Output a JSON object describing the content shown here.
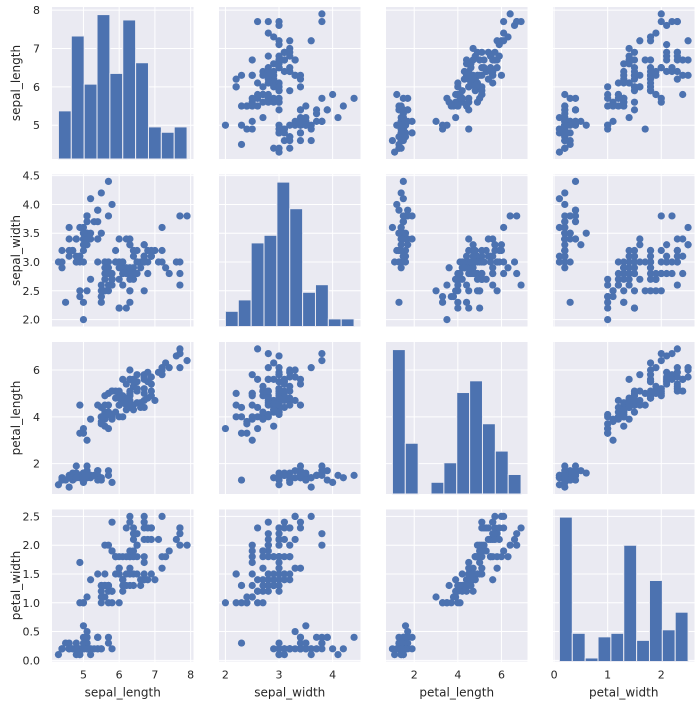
{
  "chart_data": {
    "type": "scatter",
    "variables": [
      "sepal_length",
      "sepal_width",
      "petal_length",
      "petal_width"
    ],
    "axis_labels": [
      "sepal_length",
      "sepal_width",
      "petal_length",
      "petal_width"
    ],
    "ranges": {
      "sepal_length": [
        4.12,
        8.08
      ],
      "sepal_width": [
        1.88,
        4.52
      ],
      "petal_length": [
        0.705,
        7.195
      ],
      "petal_width": [
        -0.02,
        2.62
      ]
    },
    "ticks": {
      "sepal_length": [
        5,
        6,
        7,
        8
      ],
      "sepal_width": [
        2.0,
        2.5,
        3.0,
        3.5,
        4.0,
        4.5
      ],
      "petal_length": [
        2,
        4,
        6
      ],
      "petal_width": [
        0.0,
        0.5,
        1.0,
        1.5,
        2.0,
        2.5
      ]
    },
    "tick_labels": {
      "y_sepal_length": [
        "5",
        "6",
        "7",
        "8"
      ],
      "x_sepal_length": [
        "5",
        "6",
        "7",
        "8"
      ],
      "y_sepal_width": [
        "2.0",
        "2.5",
        "3.0",
        "3.5",
        "4.0",
        "4.5"
      ],
      "x_sepal_width": [
        "2",
        "3",
        "4"
      ],
      "y_petal_length": [
        "2",
        "4",
        "6"
      ],
      "x_petal_length": [
        "2",
        "4",
        "6"
      ],
      "y_petal_width": [
        "0.0",
        "0.5",
        "1.0",
        "1.5",
        "2.0",
        "2.5"
      ],
      "x_petal_width": [
        "0",
        "1",
        "2"
      ]
    },
    "x_ticks": {
      "sepal_length": [
        5,
        6,
        7,
        8
      ],
      "sepal_width": [
        2,
        3,
        4
      ],
      "petal_length": [
        2,
        4,
        6
      ],
      "petal_width": [
        0,
        1,
        2
      ]
    },
    "histograms": {
      "sepal_length": {
        "edges": [
          4.3,
          4.66,
          5.02,
          5.38,
          5.74,
          6.1,
          6.46,
          6.82,
          7.18,
          7.54,
          7.9
        ],
        "counts": [
          9,
          23,
          14,
          27,
          16,
          26,
          18,
          6,
          5,
          6
        ]
      },
      "sepal_width": {
        "edges": [
          2.0,
          2.24,
          2.48,
          2.72,
          2.96,
          3.2,
          3.44,
          3.68,
          3.92,
          4.16,
          4.4
        ],
        "counts": [
          4,
          7,
          22,
          24,
          38,
          31,
          9,
          11,
          2,
          2
        ]
      },
      "petal_length": {
        "edges": [
          1.0,
          1.59,
          2.18,
          2.77,
          3.36,
          3.95,
          4.54,
          5.13,
          5.72,
          6.31,
          6.9
        ],
        "counts": [
          37,
          13,
          0,
          3,
          8,
          26,
          29,
          18,
          11,
          5
        ]
      },
      "petal_width": {
        "edges": [
          0.1,
          0.34,
          0.58,
          0.82,
          1.06,
          1.3,
          1.54,
          1.78,
          2.02,
          2.26,
          2.5
        ],
        "counts": [
          41,
          8,
          1,
          7,
          8,
          33,
          6,
          23,
          9,
          14
        ]
      }
    },
    "points": [
      [
        5.1,
        3.5,
        1.4,
        0.2
      ],
      [
        4.9,
        3.0,
        1.4,
        0.2
      ],
      [
        4.7,
        3.2,
        1.3,
        0.2
      ],
      [
        4.6,
        3.1,
        1.5,
        0.2
      ],
      [
        5.0,
        3.6,
        1.4,
        0.2
      ],
      [
        5.4,
        3.9,
        1.7,
        0.4
      ],
      [
        4.6,
        3.4,
        1.4,
        0.3
      ],
      [
        5.0,
        3.4,
        1.5,
        0.2
      ],
      [
        4.4,
        2.9,
        1.4,
        0.2
      ],
      [
        4.9,
        3.1,
        1.5,
        0.1
      ],
      [
        5.4,
        3.7,
        1.5,
        0.2
      ],
      [
        4.8,
        3.4,
        1.6,
        0.2
      ],
      [
        4.8,
        3.0,
        1.4,
        0.1
      ],
      [
        4.3,
        3.0,
        1.1,
        0.1
      ],
      [
        5.8,
        4.0,
        1.2,
        0.2
      ],
      [
        5.7,
        4.4,
        1.5,
        0.4
      ],
      [
        5.4,
        3.9,
        1.3,
        0.4
      ],
      [
        5.1,
        3.5,
        1.4,
        0.3
      ],
      [
        5.7,
        3.8,
        1.7,
        0.3
      ],
      [
        5.1,
        3.8,
        1.5,
        0.3
      ],
      [
        5.4,
        3.4,
        1.7,
        0.2
      ],
      [
        5.1,
        3.7,
        1.5,
        0.4
      ],
      [
        4.6,
        3.6,
        1.0,
        0.2
      ],
      [
        5.1,
        3.3,
        1.7,
        0.5
      ],
      [
        4.8,
        3.4,
        1.9,
        0.2
      ],
      [
        5.0,
        3.0,
        1.6,
        0.2
      ],
      [
        5.0,
        3.4,
        1.6,
        0.4
      ],
      [
        5.2,
        3.5,
        1.5,
        0.2
      ],
      [
        5.2,
        3.4,
        1.4,
        0.2
      ],
      [
        4.7,
        3.2,
        1.6,
        0.2
      ],
      [
        4.8,
        3.1,
        1.6,
        0.2
      ],
      [
        5.4,
        3.4,
        1.5,
        0.4
      ],
      [
        5.2,
        4.1,
        1.5,
        0.1
      ],
      [
        5.5,
        4.2,
        1.4,
        0.2
      ],
      [
        4.9,
        3.1,
        1.5,
        0.2
      ],
      [
        5.0,
        3.2,
        1.2,
        0.2
      ],
      [
        5.5,
        3.5,
        1.3,
        0.2
      ],
      [
        4.9,
        3.6,
        1.4,
        0.1
      ],
      [
        4.4,
        3.0,
        1.3,
        0.2
      ],
      [
        5.1,
        3.4,
        1.5,
        0.2
      ],
      [
        5.0,
        3.5,
        1.3,
        0.3
      ],
      [
        4.5,
        2.3,
        1.3,
        0.3
      ],
      [
        4.4,
        3.2,
        1.3,
        0.2
      ],
      [
        5.0,
        3.5,
        1.6,
        0.6
      ],
      [
        5.1,
        3.8,
        1.9,
        0.4
      ],
      [
        4.8,
        3.0,
        1.4,
        0.3
      ],
      [
        5.1,
        3.8,
        1.6,
        0.2
      ],
      [
        4.6,
        3.2,
        1.4,
        0.2
      ],
      [
        5.3,
        3.7,
        1.5,
        0.2
      ],
      [
        5.0,
        3.3,
        1.4,
        0.2
      ],
      [
        7.0,
        3.2,
        4.7,
        1.4
      ],
      [
        6.4,
        3.2,
        4.5,
        1.5
      ],
      [
        6.9,
        3.1,
        4.9,
        1.5
      ],
      [
        5.5,
        2.3,
        4.0,
        1.3
      ],
      [
        6.5,
        2.8,
        4.6,
        1.5
      ],
      [
        5.7,
        2.8,
        4.5,
        1.3
      ],
      [
        6.3,
        3.3,
        4.7,
        1.6
      ],
      [
        4.9,
        2.4,
        3.3,
        1.0
      ],
      [
        6.6,
        2.9,
        4.6,
        1.3
      ],
      [
        5.2,
        2.7,
        3.9,
        1.4
      ],
      [
        5.0,
        2.0,
        3.5,
        1.0
      ],
      [
        5.9,
        3.0,
        4.2,
        1.5
      ],
      [
        6.0,
        2.2,
        4.0,
        1.0
      ],
      [
        6.1,
        2.9,
        4.7,
        1.4
      ],
      [
        5.6,
        2.9,
        3.6,
        1.3
      ],
      [
        6.7,
        3.1,
        4.4,
        1.4
      ],
      [
        5.6,
        3.0,
        4.5,
        1.5
      ],
      [
        5.8,
        2.7,
        4.1,
        1.0
      ],
      [
        6.2,
        2.2,
        4.5,
        1.5
      ],
      [
        5.6,
        2.5,
        3.9,
        1.1
      ],
      [
        5.9,
        3.2,
        4.8,
        1.8
      ],
      [
        6.1,
        2.8,
        4.0,
        1.3
      ],
      [
        6.3,
        2.5,
        4.9,
        1.5
      ],
      [
        6.1,
        2.8,
        4.7,
        1.2
      ],
      [
        6.4,
        2.9,
        4.3,
        1.3
      ],
      [
        6.6,
        3.0,
        4.4,
        1.4
      ],
      [
        6.8,
        2.8,
        4.8,
        1.4
      ],
      [
        6.7,
        3.0,
        5.0,
        1.7
      ],
      [
        6.0,
        2.9,
        4.5,
        1.5
      ],
      [
        5.7,
        2.6,
        3.5,
        1.0
      ],
      [
        5.5,
        2.4,
        3.8,
        1.1
      ],
      [
        5.5,
        2.4,
        3.7,
        1.0
      ],
      [
        5.8,
        2.7,
        3.9,
        1.2
      ],
      [
        6.0,
        2.7,
        5.1,
        1.6
      ],
      [
        5.4,
        3.0,
        4.5,
        1.5
      ],
      [
        6.0,
        3.4,
        4.5,
        1.6
      ],
      [
        6.7,
        3.1,
        4.7,
        1.5
      ],
      [
        6.3,
        2.3,
        4.4,
        1.3
      ],
      [
        5.6,
        3.0,
        4.1,
        1.3
      ],
      [
        5.5,
        2.5,
        4.0,
        1.3
      ],
      [
        5.5,
        2.6,
        4.4,
        1.2
      ],
      [
        6.1,
        3.0,
        4.6,
        1.4
      ],
      [
        5.8,
        2.6,
        4.0,
        1.2
      ],
      [
        5.0,
        2.3,
        3.3,
        1.0
      ],
      [
        5.6,
        2.7,
        4.2,
        1.3
      ],
      [
        5.7,
        3.0,
        4.2,
        1.2
      ],
      [
        5.7,
        2.9,
        4.2,
        1.3
      ],
      [
        6.2,
        2.9,
        4.3,
        1.3
      ],
      [
        5.1,
        2.5,
        3.0,
        1.1
      ],
      [
        5.7,
        2.8,
        4.1,
        1.3
      ],
      [
        6.3,
        3.3,
        6.0,
        2.5
      ],
      [
        5.8,
        2.7,
        5.1,
        1.9
      ],
      [
        7.1,
        3.0,
        5.9,
        2.1
      ],
      [
        6.3,
        2.9,
        5.6,
        1.8
      ],
      [
        6.5,
        3.0,
        5.8,
        2.2
      ],
      [
        7.6,
        3.0,
        6.6,
        2.1
      ],
      [
        4.9,
        2.5,
        4.5,
        1.7
      ],
      [
        7.3,
        2.9,
        6.3,
        1.8
      ],
      [
        6.7,
        2.5,
        5.8,
        1.8
      ],
      [
        7.2,
        3.6,
        6.1,
        2.5
      ],
      [
        6.5,
        3.2,
        5.1,
        2.0
      ],
      [
        6.4,
        2.7,
        5.3,
        1.9
      ],
      [
        6.8,
        3.0,
        5.5,
        2.1
      ],
      [
        5.7,
        2.5,
        5.0,
        2.0
      ],
      [
        5.8,
        2.8,
        5.1,
        2.4
      ],
      [
        6.4,
        3.2,
        5.3,
        2.3
      ],
      [
        6.5,
        3.0,
        5.5,
        1.8
      ],
      [
        7.7,
        3.8,
        6.7,
        2.2
      ],
      [
        7.7,
        2.6,
        6.9,
        2.3
      ],
      [
        6.0,
        2.2,
        5.0,
        1.5
      ],
      [
        6.9,
        3.2,
        5.7,
        2.3
      ],
      [
        5.6,
        2.8,
        4.9,
        2.0
      ],
      [
        7.7,
        2.8,
        6.7,
        2.0
      ],
      [
        6.3,
        2.7,
        4.9,
        1.8
      ],
      [
        6.7,
        3.3,
        5.7,
        2.1
      ],
      [
        7.2,
        3.2,
        6.0,
        1.8
      ],
      [
        6.2,
        2.8,
        4.8,
        1.8
      ],
      [
        6.1,
        3.0,
        4.9,
        1.8
      ],
      [
        6.4,
        2.8,
        5.6,
        2.1
      ],
      [
        7.2,
        3.0,
        5.8,
        1.6
      ],
      [
        7.4,
        2.8,
        6.1,
        1.9
      ],
      [
        7.9,
        3.8,
        6.4,
        2.0
      ],
      [
        6.4,
        2.8,
        5.6,
        2.2
      ],
      [
        6.3,
        2.8,
        5.1,
        1.5
      ],
      [
        6.1,
        2.6,
        5.6,
        1.4
      ],
      [
        7.7,
        3.0,
        6.1,
        2.3
      ],
      [
        6.3,
        3.4,
        5.6,
        2.4
      ],
      [
        6.4,
        3.1,
        5.5,
        1.8
      ],
      [
        6.0,
        3.0,
        4.8,
        1.8
      ],
      [
        6.9,
        3.1,
        5.4,
        2.1
      ],
      [
        6.7,
        3.1,
        5.6,
        2.4
      ],
      [
        6.9,
        3.1,
        5.1,
        2.3
      ],
      [
        5.8,
        2.7,
        5.1,
        1.9
      ],
      [
        6.8,
        3.2,
        5.9,
        2.3
      ],
      [
        6.7,
        3.3,
        5.7,
        2.5
      ],
      [
        6.7,
        3.0,
        5.2,
        2.3
      ],
      [
        6.3,
        2.5,
        5.0,
        1.9
      ],
      [
        6.5,
        3.0,
        5.2,
        2.0
      ],
      [
        6.2,
        3.4,
        5.4,
        2.3
      ],
      [
        5.9,
        3.0,
        5.1,
        1.8
      ]
    ],
    "grid": true,
    "colors": {
      "marker": "#4c72b0",
      "panel_bg": "#eaeaf2",
      "grid": "#ffffff",
      "text": "#262626"
    }
  }
}
